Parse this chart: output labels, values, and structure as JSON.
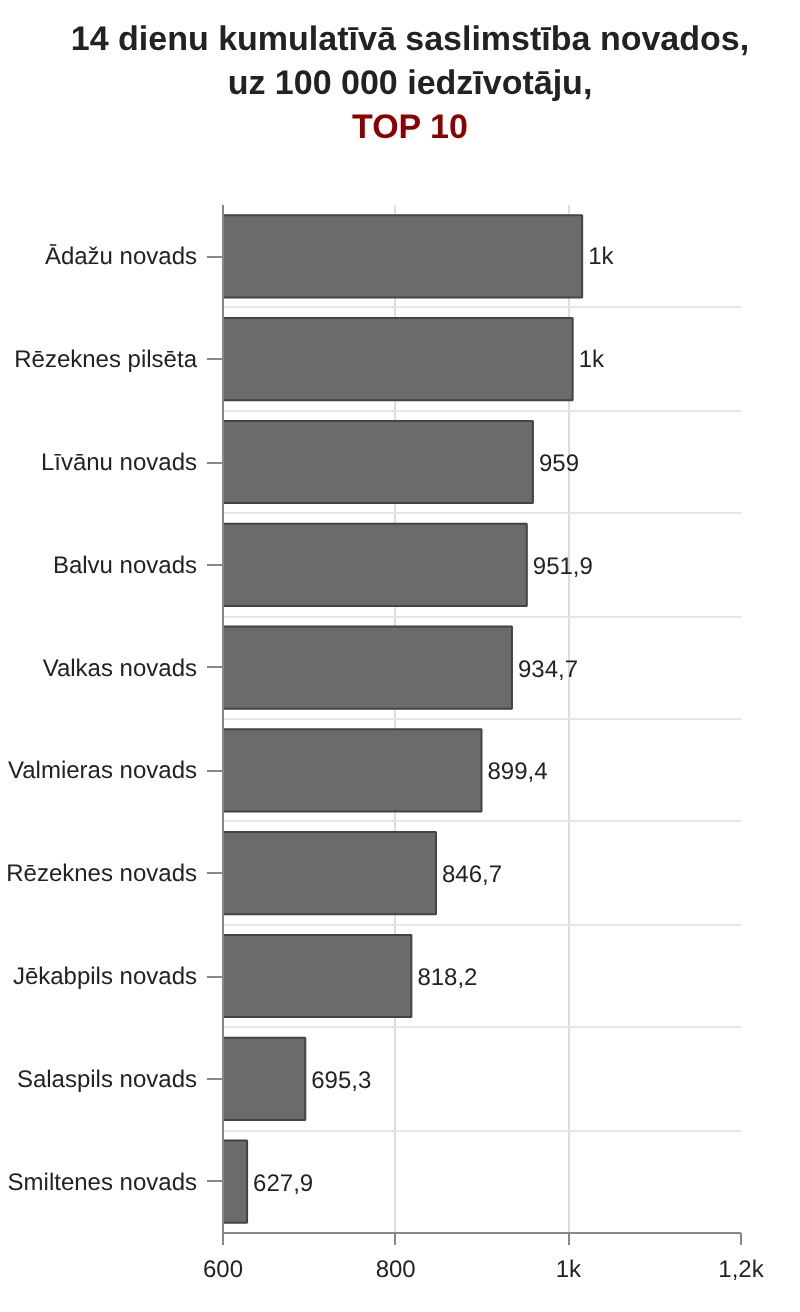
{
  "chart_data": {
    "type": "bar",
    "orientation": "horizontal",
    "title": "14 dienu kumulatīvā saslimstība novados,\nuz 100 000 iedzīvotāju,",
    "subtitle": "TOP 10",
    "categories": [
      "Ādažu novads",
      "Rēzeknes pilsēta",
      "Līvānu novads",
      "Balvu novads",
      "Valkas novads",
      "Valmieras novads",
      "Rēzeknes novads",
      "Jēkabpils novads",
      "Salaspils novads",
      "Smiltenes novads"
    ],
    "values": [
      1016,
      1005,
      959,
      951.9,
      934.7,
      899.4,
      846.7,
      818.2,
      695.3,
      627.9
    ],
    "value_labels": [
      "1k",
      "1k",
      "959",
      "951,9",
      "934,7",
      "899,4",
      "846,7",
      "818,2",
      "695,3",
      "627,9"
    ],
    "color": "#6b6b6b",
    "xlim": [
      600,
      1200
    ],
    "xticks": [
      600,
      800,
      {
        "value": 1000,
        "label": "1k"
      },
      {
        "value": 1200,
        "label": "1,2k"
      }
    ],
    "grid": true
  }
}
